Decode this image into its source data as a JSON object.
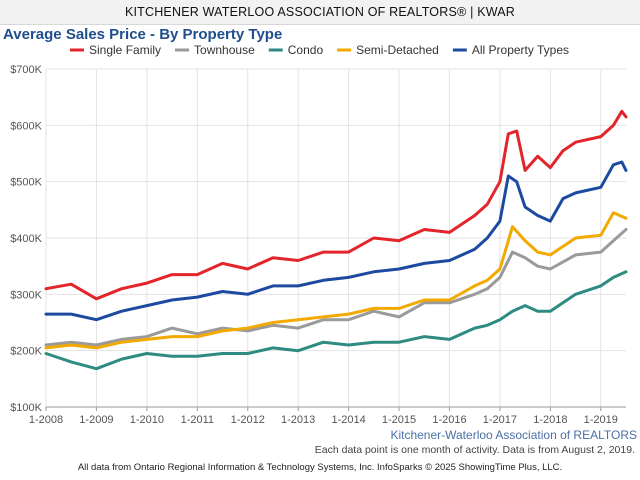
{
  "header": {
    "banner": "KITCHENER WATERLOO ASSOCIATION OF REALTORS® | KWAR"
  },
  "source_label": "Kitchener-Waterloo Association of REALTORS",
  "note": "Each data point is one month of activity. Data is from August 2, 2019.",
  "footer": "All data from Ontario Regional Information & Technology Systems, Inc. InfoSparks © 2025 ShowingTime Plus, LLC.",
  "chart_data": {
    "type": "line",
    "title": "Average Sales Price - By Property Type",
    "xlabel": "",
    "ylabel": "",
    "x_start": "2008-01",
    "x_end": "2019-07",
    "xlim": [
      "2008-01",
      "2019-07"
    ],
    "ylim": [
      100000,
      700000
    ],
    "grid": true,
    "legend": "top",
    "y_ticks": [
      {
        "value": 100000,
        "label": "$100K"
      },
      {
        "value": 200000,
        "label": "$200K"
      },
      {
        "value": 300000,
        "label": "$300K"
      },
      {
        "value": 400000,
        "label": "$400K"
      },
      {
        "value": 500000,
        "label": "$500K"
      },
      {
        "value": 600000,
        "label": "$600K"
      },
      {
        "value": 700000,
        "label": "$700K"
      }
    ],
    "x_ticks": [
      {
        "value": "2008-01",
        "label": "1-2008"
      },
      {
        "value": "2009-01",
        "label": "1-2009"
      },
      {
        "value": "2010-01",
        "label": "1-2010"
      },
      {
        "value": "2011-01",
        "label": "1-2011"
      },
      {
        "value": "2012-01",
        "label": "1-2012"
      },
      {
        "value": "2013-01",
        "label": "1-2013"
      },
      {
        "value": "2014-01",
        "label": "1-2014"
      },
      {
        "value": "2015-01",
        "label": "1-2015"
      },
      {
        "value": "2016-01",
        "label": "1-2016"
      },
      {
        "value": "2017-01",
        "label": "1-2017"
      },
      {
        "value": "2018-01",
        "label": "1-2018"
      },
      {
        "value": "2019-01",
        "label": "1-2019"
      }
    ],
    "series": [
      {
        "name": "Single Family",
        "color": "#e3242b",
        "points": [
          [
            "2008-01",
            310000
          ],
          [
            "2008-07",
            318000
          ],
          [
            "2009-01",
            292000
          ],
          [
            "2009-07",
            310000
          ],
          [
            "2010-01",
            320000
          ],
          [
            "2010-07",
            335000
          ],
          [
            "2011-01",
            335000
          ],
          [
            "2011-07",
            355000
          ],
          [
            "2012-01",
            345000
          ],
          [
            "2012-07",
            365000
          ],
          [
            "2013-01",
            360000
          ],
          [
            "2013-07",
            375000
          ],
          [
            "2014-01",
            375000
          ],
          [
            "2014-07",
            400000
          ],
          [
            "2015-01",
            395000
          ],
          [
            "2015-07",
            415000
          ],
          [
            "2016-01",
            410000
          ],
          [
            "2016-07",
            440000
          ],
          [
            "2016-10",
            460000
          ],
          [
            "2017-01",
            500000
          ],
          [
            "2017-03",
            585000
          ],
          [
            "2017-05",
            590000
          ],
          [
            "2017-07",
            520000
          ],
          [
            "2017-10",
            545000
          ],
          [
            "2018-01",
            525000
          ],
          [
            "2018-04",
            555000
          ],
          [
            "2018-07",
            570000
          ],
          [
            "2019-01",
            580000
          ],
          [
            "2019-04",
            600000
          ],
          [
            "2019-06",
            625000
          ],
          [
            "2019-07",
            615000
          ]
        ]
      },
      {
        "name": "Townhouse",
        "color": "#9a9a9a",
        "points": [
          [
            "2008-01",
            210000
          ],
          [
            "2008-07",
            215000
          ],
          [
            "2009-01",
            210000
          ],
          [
            "2009-07",
            220000
          ],
          [
            "2010-01",
            225000
          ],
          [
            "2010-07",
            240000
          ],
          [
            "2011-01",
            230000
          ],
          [
            "2011-07",
            240000
          ],
          [
            "2012-01",
            235000
          ],
          [
            "2012-07",
            245000
          ],
          [
            "2013-01",
            240000
          ],
          [
            "2013-07",
            255000
          ],
          [
            "2014-01",
            255000
          ],
          [
            "2014-07",
            270000
          ],
          [
            "2015-01",
            260000
          ],
          [
            "2015-07",
            285000
          ],
          [
            "2016-01",
            285000
          ],
          [
            "2016-07",
            300000
          ],
          [
            "2016-10",
            310000
          ],
          [
            "2017-01",
            330000
          ],
          [
            "2017-04",
            375000
          ],
          [
            "2017-07",
            365000
          ],
          [
            "2017-10",
            350000
          ],
          [
            "2018-01",
            345000
          ],
          [
            "2018-07",
            370000
          ],
          [
            "2019-01",
            375000
          ],
          [
            "2019-04",
            395000
          ],
          [
            "2019-07",
            415000
          ]
        ]
      },
      {
        "name": "Condo",
        "color": "#2e8b83",
        "points": [
          [
            "2008-01",
            195000
          ],
          [
            "2008-07",
            180000
          ],
          [
            "2009-01",
            168000
          ],
          [
            "2009-07",
            185000
          ],
          [
            "2010-01",
            195000
          ],
          [
            "2010-07",
            190000
          ],
          [
            "2011-01",
            190000
          ],
          [
            "2011-07",
            195000
          ],
          [
            "2012-01",
            195000
          ],
          [
            "2012-07",
            205000
          ],
          [
            "2013-01",
            200000
          ],
          [
            "2013-07",
            215000
          ],
          [
            "2014-01",
            210000
          ],
          [
            "2014-07",
            215000
          ],
          [
            "2015-01",
            215000
          ],
          [
            "2015-07",
            225000
          ],
          [
            "2016-01",
            220000
          ],
          [
            "2016-07",
            240000
          ],
          [
            "2016-10",
            245000
          ],
          [
            "2017-01",
            255000
          ],
          [
            "2017-04",
            270000
          ],
          [
            "2017-07",
            280000
          ],
          [
            "2017-10",
            270000
          ],
          [
            "2018-01",
            270000
          ],
          [
            "2018-07",
            300000
          ],
          [
            "2019-01",
            315000
          ],
          [
            "2019-04",
            330000
          ],
          [
            "2019-07",
            340000
          ]
        ]
      },
      {
        "name": "Semi-Detached",
        "color": "#f2a900",
        "points": [
          [
            "2008-01",
            205000
          ],
          [
            "2008-07",
            210000
          ],
          [
            "2009-01",
            205000
          ],
          [
            "2009-07",
            215000
          ],
          [
            "2010-01",
            220000
          ],
          [
            "2010-07",
            225000
          ],
          [
            "2011-01",
            225000
          ],
          [
            "2011-07",
            235000
          ],
          [
            "2012-01",
            240000
          ],
          [
            "2012-07",
            250000
          ],
          [
            "2013-01",
            255000
          ],
          [
            "2013-07",
            260000
          ],
          [
            "2014-01",
            265000
          ],
          [
            "2014-07",
            275000
          ],
          [
            "2015-01",
            275000
          ],
          [
            "2015-07",
            290000
          ],
          [
            "2016-01",
            290000
          ],
          [
            "2016-07",
            315000
          ],
          [
            "2016-10",
            325000
          ],
          [
            "2017-01",
            345000
          ],
          [
            "2017-04",
            420000
          ],
          [
            "2017-07",
            395000
          ],
          [
            "2017-10",
            375000
          ],
          [
            "2018-01",
            370000
          ],
          [
            "2018-07",
            400000
          ],
          [
            "2019-01",
            405000
          ],
          [
            "2019-04",
            445000
          ],
          [
            "2019-07",
            435000
          ]
        ]
      },
      {
        "name": "All Property Types",
        "color": "#1c4aa0",
        "points": [
          [
            "2008-01",
            265000
          ],
          [
            "2008-07",
            265000
          ],
          [
            "2009-01",
            255000
          ],
          [
            "2009-07",
            270000
          ],
          [
            "2010-01",
            280000
          ],
          [
            "2010-07",
            290000
          ],
          [
            "2011-01",
            295000
          ],
          [
            "2011-07",
            305000
          ],
          [
            "2012-01",
            300000
          ],
          [
            "2012-07",
            315000
          ],
          [
            "2013-01",
            315000
          ],
          [
            "2013-07",
            325000
          ],
          [
            "2014-01",
            330000
          ],
          [
            "2014-07",
            340000
          ],
          [
            "2015-01",
            345000
          ],
          [
            "2015-07",
            355000
          ],
          [
            "2016-01",
            360000
          ],
          [
            "2016-07",
            380000
          ],
          [
            "2016-10",
            400000
          ],
          [
            "2017-01",
            430000
          ],
          [
            "2017-03",
            510000
          ],
          [
            "2017-05",
            500000
          ],
          [
            "2017-07",
            455000
          ],
          [
            "2017-10",
            440000
          ],
          [
            "2018-01",
            430000
          ],
          [
            "2018-04",
            470000
          ],
          [
            "2018-07",
            480000
          ],
          [
            "2019-01",
            490000
          ],
          [
            "2019-04",
            530000
          ],
          [
            "2019-06",
            535000
          ],
          [
            "2019-07",
            520000
          ]
        ]
      }
    ]
  }
}
